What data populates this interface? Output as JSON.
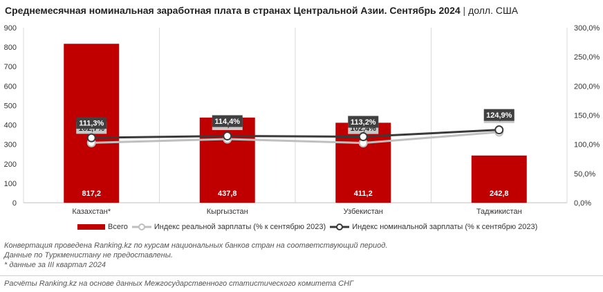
{
  "title": {
    "main": "Среднемесячная номинальная заработная плата в странах Центральной Азии. Сентябрь 2024",
    "separator": "|",
    "unit": "долл. США"
  },
  "colors": {
    "bar": "#C00000",
    "nominal_line": "#3a3a3a",
    "real_line": "#bfbfbf",
    "nominal_label_bg": "#404040",
    "real_label_bg": "#c8c8c8",
    "grid": "#d9d9d9"
  },
  "chart_data": {
    "type": "bar",
    "categories": [
      "Казахстан*",
      "Кыргызстан",
      "Узбекистан",
      "Таджикистан"
    ],
    "series": [
      {
        "name": "Всего",
        "type": "bar",
        "axis": "left",
        "values": [
          817.2,
          437.8,
          411.2,
          242.8
        ],
        "labels": [
          "817,2",
          "437,8",
          "411,2",
          "242,8"
        ]
      },
      {
        "name": "Индекс реальной зарплаты (% к сентябрю 2023)",
        "type": "line",
        "axis": "right",
        "values": [
          102.7,
          109.1,
          102.4,
          121.1
        ],
        "labels": [
          "102,7%",
          "109,1%",
          "102,4%",
          "121,1%"
        ]
      },
      {
        "name": "Индекс номинальной зарплаты (% к сентябрю 2023)",
        "type": "line",
        "axis": "right",
        "values": [
          111.3,
          114.4,
          113.2,
          124.9
        ],
        "labels": [
          "111,3%",
          "114,4%",
          "113,2%",
          "124,9%"
        ]
      }
    ],
    "ylim": [
      0,
      900
    ],
    "y_ticks": [
      0,
      100,
      200,
      300,
      400,
      500,
      600,
      700,
      800,
      900
    ],
    "y_tick_labels": [
      "0",
      "100",
      "200",
      "300",
      "400",
      "500",
      "600",
      "700",
      "800",
      "900"
    ],
    "y2lim": [
      0,
      300
    ],
    "y2_ticks": [
      0,
      50,
      100,
      150,
      200,
      250,
      300
    ],
    "y2_tick_labels": [
      "0,0%",
      "50,0%",
      "100,0%",
      "150,0%",
      "200,0%",
      "250,0%",
      "300,0%"
    ],
    "grid": "vertical",
    "legend_position": "bottom"
  },
  "legend": [
    {
      "label": "Всего",
      "kind": "bar"
    },
    {
      "label": "Индекс реальной зарплаты (% к сентябрю 2023)",
      "kind": "real"
    },
    {
      "label": "Индекс номинальной зарплаты (% к сентябрю 2023)",
      "kind": "nominal"
    }
  ],
  "notes": [
    "Конвертация проведена Ranking.kz по курсам национальных банков стран на соответствующий период.",
    "Данные по Туркменистану не предоставлены.",
    "* данные за III квартал 2024"
  ],
  "source": "Расчёты Ranking.kz на основе данных Межгосударственного статистического комитета СНГ"
}
